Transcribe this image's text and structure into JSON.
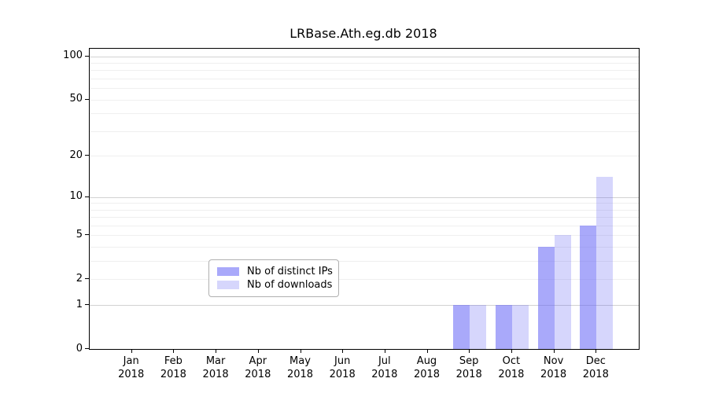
{
  "chart": {
    "title": "LRBase.Ath.eg.db 2018",
    "chart_data": {
      "type": "bar",
      "scale": "log1p",
      "title": "LRBase.Ath.eg.db 2018",
      "categories": [
        "Jan",
        "Feb",
        "Mar",
        "Apr",
        "May",
        "Jun",
        "Jul",
        "Aug",
        "Sep",
        "Oct",
        "Nov",
        "Dec"
      ],
      "year": "2018",
      "series": [
        {
          "name": "Nb of distinct IPs",
          "color": "rgba(98,98,245,0.55)",
          "values": [
            0,
            0,
            0,
            0,
            0,
            0,
            0,
            0,
            1,
            1,
            4,
            6
          ]
        },
        {
          "name": "Nb of downloads",
          "color": "rgba(98,98,245,0.26)",
          "values": [
            0,
            0,
            0,
            0,
            0,
            0,
            0,
            0,
            1,
            1,
            5,
            14
          ]
        }
      ],
      "ylim": [
        0,
        100
      ],
      "yticks": [
        0,
        1,
        2,
        5,
        10,
        20,
        50,
        100
      ],
      "grid_major": [
        1,
        10,
        100
      ],
      "grid_minor": [
        2,
        3,
        4,
        5,
        6,
        7,
        8,
        9,
        20,
        30,
        40,
        50,
        60,
        70,
        80,
        90
      ],
      "grid_on": true,
      "legend_position": "lower center inside"
    },
    "colors": {
      "grid_major": "#d2d2d2",
      "grid_minor": "#efefef",
      "axis": "#000000"
    }
  }
}
